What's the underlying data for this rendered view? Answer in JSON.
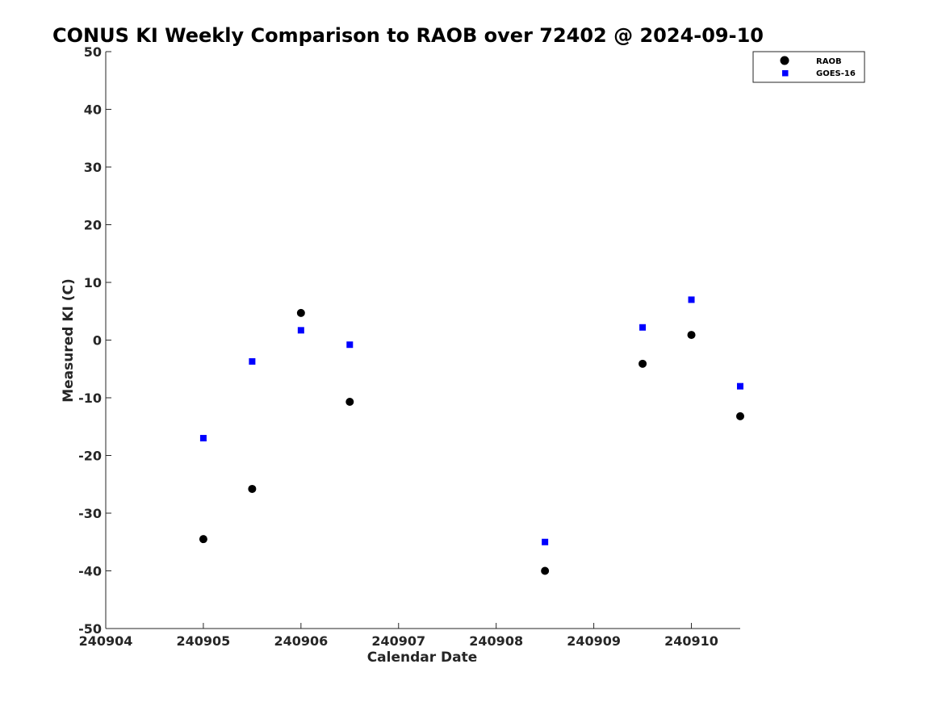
{
  "chart_data": {
    "type": "scatter",
    "title": "CONUS KI Weekly Comparison to RAOB over 72402 @ 2024-09-10",
    "xlabel": "Calendar Date",
    "ylabel": "Measured KI (C)",
    "xlim": [
      "240904",
      "240910.5"
    ],
    "ylim": [
      -50,
      50
    ],
    "x_ticks": [
      "240904",
      "240905",
      "240906",
      "240907",
      "240908",
      "240909",
      "240910"
    ],
    "y_ticks": [
      50,
      40,
      30,
      20,
      10,
      0,
      -10,
      -20,
      -30,
      -40,
      -50
    ],
    "grid": false,
    "legend_position": "top-right",
    "series": [
      {
        "name": "RAOB",
        "marker": "circle",
        "color": "#000000",
        "points": [
          {
            "x": 240905.0,
            "y": -34.5
          },
          {
            "x": 240905.5,
            "y": -25.8
          },
          {
            "x": 240906.0,
            "y": 4.7
          },
          {
            "x": 240906.5,
            "y": -10.7
          },
          {
            "x": 240908.5,
            "y": -40.0
          },
          {
            "x": 240909.5,
            "y": -4.1
          },
          {
            "x": 240910.0,
            "y": 0.9
          },
          {
            "x": 240910.5,
            "y": -13.2
          }
        ]
      },
      {
        "name": "GOES-16",
        "marker": "square",
        "color": "#0000ff",
        "points": [
          {
            "x": 240905.0,
            "y": -17.0
          },
          {
            "x": 240905.5,
            "y": -3.7
          },
          {
            "x": 240906.0,
            "y": 1.7
          },
          {
            "x": 240906.5,
            "y": -0.8
          },
          {
            "x": 240908.5,
            "y": -35.0
          },
          {
            "x": 240909.5,
            "y": 2.2
          },
          {
            "x": 240910.0,
            "y": 7.0
          },
          {
            "x": 240910.5,
            "y": -8.0
          }
        ]
      }
    ]
  }
}
